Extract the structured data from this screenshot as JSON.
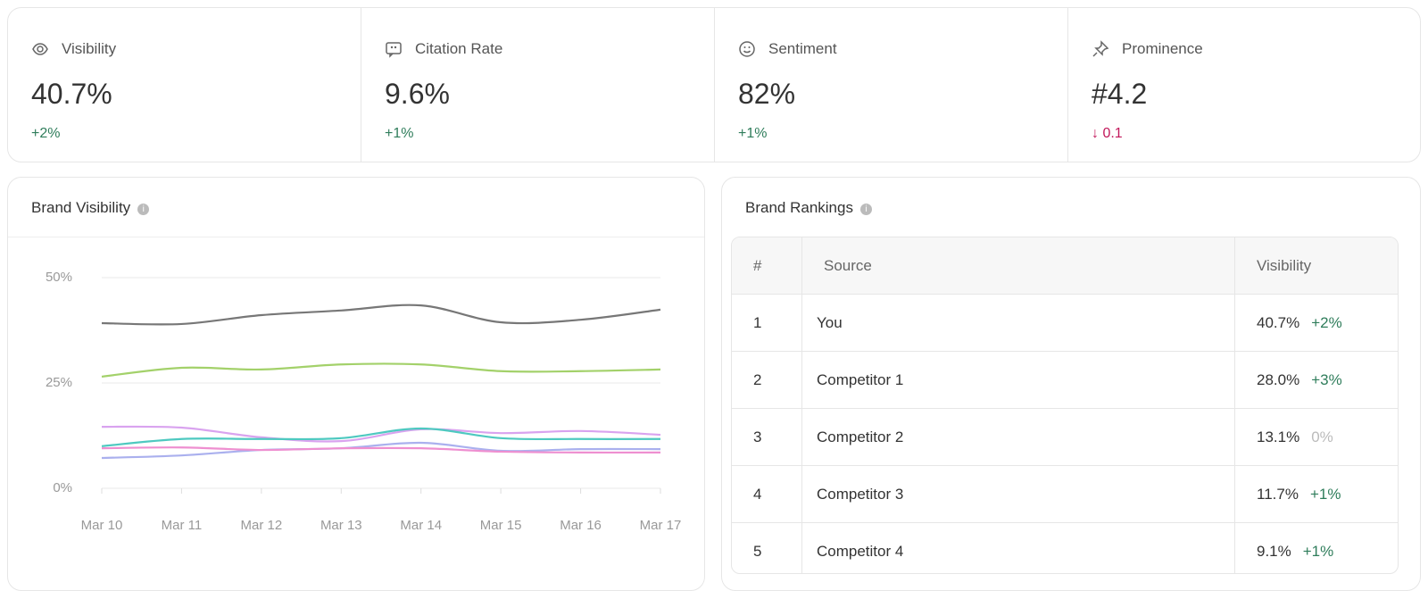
{
  "kpis": [
    {
      "label": "Visibility",
      "value": "40.7%",
      "delta": "+2%"
    },
    {
      "label": "Citation Rate",
      "value": "9.6%",
      "delta": "+1%"
    },
    {
      "label": "Sentiment",
      "value": "82%",
      "delta": "+1%"
    },
    {
      "label": "Prominence",
      "value": "#4.2",
      "delta": "↓ 0.1"
    }
  ],
  "chart_data": {
    "type": "line",
    "title": "Brand Visibility",
    "categories": [
      "Mar 10",
      "Mar 11",
      "Mar 12",
      "Mar 13",
      "Mar 14",
      "Mar 15",
      "Mar 16",
      "Mar 17"
    ],
    "series": [
      {
        "color": "#777777",
        "values": [
          39.2,
          39,
          41.1,
          42.2,
          43.4,
          39.4,
          40,
          42.4
        ]
      },
      {
        "color": "#a3d16a",
        "values": [
          26.5,
          28.6,
          28.2,
          29.4,
          29.4,
          27.8,
          27.8,
          28.2
        ]
      },
      {
        "color": "#d9a3ef",
        "values": [
          14.6,
          14.4,
          12.1,
          11.2,
          14,
          13.1,
          13.6,
          12.7
        ]
      },
      {
        "color": "#4ec9c0",
        "values": [
          10,
          11.7,
          11.7,
          11.9,
          14.2,
          11.9,
          11.7,
          11.7
        ]
      },
      {
        "color": "#aab0ee",
        "values": [
          7.2,
          7.8,
          9.1,
          9.5,
          10.8,
          8.9,
          9.3,
          9.3
        ]
      },
      {
        "color": "#ee8fd0",
        "values": [
          9.5,
          9.7,
          9.1,
          9.5,
          9.5,
          8.7,
          8.5,
          8.5
        ]
      }
    ],
    "ylim": [
      0,
      50
    ],
    "yticks": [
      {
        "value": 0,
        "label": "0%"
      },
      {
        "value": 25,
        "label": "25%"
      },
      {
        "value": 50,
        "label": "50%"
      }
    ],
    "grid": true
  },
  "rankings": {
    "title": "Brand Rankings",
    "columns": [
      "#",
      "Source",
      "Visibility"
    ],
    "rows": [
      [
        "1",
        "You",
        "40.7%",
        "+2%"
      ],
      [
        "2",
        "Competitor 1",
        "28.0%",
        "+3%"
      ],
      [
        "3",
        "Competitor 2",
        "13.1%",
        "0%"
      ],
      [
        "4",
        "Competitor 3",
        "11.7%",
        "+1%"
      ],
      [
        "5",
        "Competitor 4",
        "9.1%",
        "+1%"
      ]
    ]
  }
}
